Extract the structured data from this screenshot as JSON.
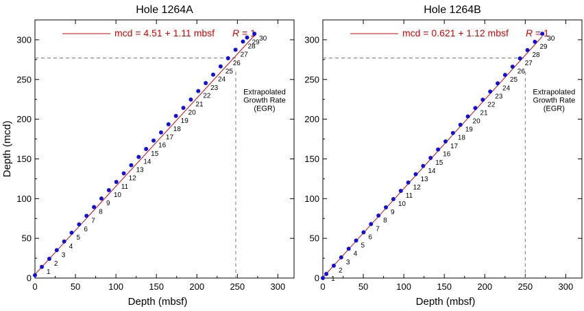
{
  "colors": {
    "point": "#1010e0",
    "fit_line": "#e00000",
    "equation": "#e00000",
    "dashed": "#777777",
    "axis": "#000000"
  },
  "chart_data": [
    {
      "type": "scatter",
      "title": "Hole 1264A",
      "xlabel": "Depth (mbsf)",
      "ylabel": "Depth  (mcd)",
      "xlim": [
        0,
        320
      ],
      "ylim": [
        0,
        325
      ],
      "xticks": [
        0,
        50,
        100,
        150,
        200,
        250,
        300
      ],
      "yticks": [
        0,
        50,
        100,
        150,
        200,
        250,
        300
      ],
      "grid": false,
      "legend": {
        "position": "top-left",
        "equation": "mcd = 4.51 + 1.11 mbsf",
        "r_label": "R",
        "r_value": " = 1"
      },
      "fit": {
        "intercept": 4.51,
        "slope": 1.11
      },
      "egr": {
        "x": 248,
        "y": 277,
        "label_lines": [
          "Extrapolated",
          "Growth Rate",
          "(EGR)"
        ]
      },
      "points": [
        {
          "label": "",
          "x": 0.0,
          "y": 3.6
        },
        {
          "label": "1",
          "x": 8.5,
          "y": 14.0
        },
        {
          "label": "2",
          "x": 17.7,
          "y": 24.2
        },
        {
          "label": "3",
          "x": 26.9,
          "y": 35.1
        },
        {
          "label": "4",
          "x": 36.1,
          "y": 46.0
        },
        {
          "label": "5",
          "x": 45.3,
          "y": 57.1
        },
        {
          "label": "6",
          "x": 54.5,
          "y": 67.5
        },
        {
          "label": "7",
          "x": 63.7,
          "y": 78.3
        },
        {
          "label": "8",
          "x": 72.9,
          "y": 89.4
        },
        {
          "label": "9",
          "x": 82.1,
          "y": 100.2
        },
        {
          "label": "10",
          "x": 91.3,
          "y": 110.6
        },
        {
          "label": "11",
          "x": 100.5,
          "y": 121.0
        },
        {
          "label": "12",
          "x": 109.7,
          "y": 131.8
        },
        {
          "label": "13",
          "x": 118.9,
          "y": 142.1
        },
        {
          "label": "14",
          "x": 128.1,
          "y": 152.5
        },
        {
          "label": "15",
          "x": 137.3,
          "y": 162.5
        },
        {
          "label": "16",
          "x": 146.5,
          "y": 173.1
        },
        {
          "label": "17",
          "x": 155.7,
          "y": 183.3
        },
        {
          "label": "18",
          "x": 164.9,
          "y": 193.6
        },
        {
          "label": "19",
          "x": 174.1,
          "y": 204.1
        },
        {
          "label": "20",
          "x": 183.3,
          "y": 214.3
        },
        {
          "label": "21",
          "x": 192.5,
          "y": 224.7
        },
        {
          "label": "22",
          "x": 201.7,
          "y": 235.4
        },
        {
          "label": "23",
          "x": 210.9,
          "y": 245.5
        },
        {
          "label": "24",
          "x": 220.1,
          "y": 256.1
        },
        {
          "label": "25",
          "x": 229.3,
          "y": 266.4
        },
        {
          "label": "26",
          "x": 238.5,
          "y": 276.7
        },
        {
          "label": "27",
          "x": 247.7,
          "y": 287.4
        },
        {
          "label": "28",
          "x": 256.9,
          "y": 297.8
        },
        {
          "label": "29",
          "x": 262.0,
          "y": 302.9
        },
        {
          "label": "30",
          "x": 271.0,
          "y": 307.6
        }
      ]
    },
    {
      "type": "scatter",
      "title": "Hole 1264B",
      "xlabel": "Depth (mbsf)",
      "ylabel": "",
      "xlim": [
        0,
        320
      ],
      "ylim": [
        0,
        325
      ],
      "xticks": [
        0,
        50,
        100,
        150,
        200,
        250,
        300
      ],
      "yticks": [
        0,
        50,
        100,
        150,
        200,
        250,
        300
      ],
      "grid": false,
      "legend": {
        "position": "top-left",
        "equation": "mcd = 0.621 + 1.12 mbsf",
        "r_label": "R",
        "r_value": " = 1"
      },
      "fit": {
        "intercept": 0.621,
        "slope": 1.12
      },
      "egr": {
        "x": 250,
        "y": 277,
        "label_lines": [
          "Extrapolated",
          "Growth Rate",
          "(EGR)"
        ]
      },
      "points": [
        {
          "label": "",
          "x": 0.0,
          "y": 0.0
        },
        {
          "label": "1",
          "x": 4.3,
          "y": 5.2
        },
        {
          "label": "2",
          "x": 13.5,
          "y": 15.6
        },
        {
          "label": "3",
          "x": 22.7,
          "y": 26.0
        },
        {
          "label": "4",
          "x": 31.9,
          "y": 36.9
        },
        {
          "label": "5",
          "x": 41.1,
          "y": 47.2
        },
        {
          "label": "6",
          "x": 50.3,
          "y": 57.6
        },
        {
          "label": "7",
          "x": 59.5,
          "y": 68.0
        },
        {
          "label": "8",
          "x": 68.7,
          "y": 78.7
        },
        {
          "label": "9",
          "x": 77.9,
          "y": 89.0
        },
        {
          "label": "10",
          "x": 87.1,
          "y": 99.4
        },
        {
          "label": "11",
          "x": 96.3,
          "y": 109.8
        },
        {
          "label": "12",
          "x": 105.5,
          "y": 120.3
        },
        {
          "label": "13",
          "x": 114.7,
          "y": 130.7
        },
        {
          "label": "14",
          "x": 123.9,
          "y": 141.1
        },
        {
          "label": "15",
          "x": 133.1,
          "y": 151.3
        },
        {
          "label": "16",
          "x": 142.3,
          "y": 161.9
        },
        {
          "label": "17",
          "x": 151.5,
          "y": 172.0
        },
        {
          "label": "18",
          "x": 160.7,
          "y": 182.6
        },
        {
          "label": "19",
          "x": 169.9,
          "y": 193.0
        },
        {
          "label": "20",
          "x": 179.1,
          "y": 203.5
        },
        {
          "label": "21",
          "x": 188.3,
          "y": 214.0
        },
        {
          "label": "22",
          "x": 197.5,
          "y": 224.5
        },
        {
          "label": "23",
          "x": 206.7,
          "y": 234.8
        },
        {
          "label": "24",
          "x": 215.9,
          "y": 245.2
        },
        {
          "label": "25",
          "x": 225.1,
          "y": 255.7
        },
        {
          "label": "26",
          "x": 234.3,
          "y": 266.1
        },
        {
          "label": "27",
          "x": 243.5,
          "y": 276.5
        },
        {
          "label": "28",
          "x": 252.7,
          "y": 287.0
        },
        {
          "label": "29",
          "x": 261.9,
          "y": 297.4
        },
        {
          "label": "30",
          "x": 271.1,
          "y": 307.6
        }
      ]
    }
  ]
}
